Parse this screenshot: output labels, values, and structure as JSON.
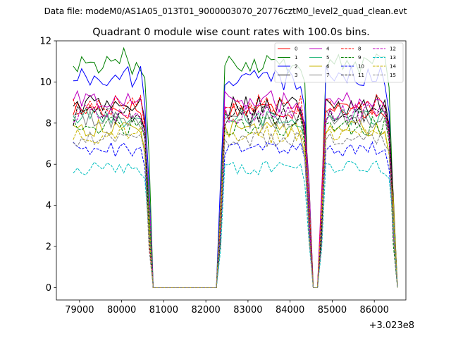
{
  "suptitle": "Data file: modeM0/AS1A05_013T01_9000003070_20776cztM0_level2_quad_clean.evt",
  "chart_data": {
    "type": "line",
    "title": "Quadrant 0 module wise count rates with 100.0s bins.",
    "xlabel": "",
    "ylabel": "",
    "x_offset_label": "+3.023e8",
    "xlim": [
      78450,
      86750
    ],
    "ylim": [
      -0.6,
      12
    ],
    "x_ticks": [
      79000,
      80000,
      81000,
      82000,
      83000,
      84000,
      85000,
      86000
    ],
    "x_tick_labels": [
      "79000",
      "80000",
      "81000",
      "82000",
      "83000",
      "84000",
      "85000",
      "86000"
    ],
    "y_ticks": [
      0,
      2,
      4,
      6,
      8,
      10,
      12
    ],
    "y_tick_labels": [
      "0",
      "2",
      "4",
      "6",
      "8",
      "10",
      "12"
    ],
    "legend_position": "top-right",
    "x_start": 78850,
    "x_step": 100,
    "segments": [
      {
        "start": 0,
        "end": 18
      },
      {
        "start": 35,
        "end": 56
      },
      {
        "start": 59,
        "end": 76
      }
    ],
    "series": [
      {
        "name": "0",
        "color": "#ff0000",
        "dash": "solid",
        "base": 8.5
      },
      {
        "name": "1",
        "color": "#008000",
        "dash": "solid",
        "base": 10.8
      },
      {
        "name": "2",
        "color": "#0000ff",
        "dash": "solid",
        "base": 10.0
      },
      {
        "name": "3",
        "color": "#000000",
        "dash": "solid",
        "base": 8.7
      },
      {
        "name": "4",
        "color": "#c000c0",
        "dash": "solid",
        "base": 8.9
      },
      {
        "name": "5",
        "color": "#2ab87e",
        "dash": "solid",
        "base": 8.1
      },
      {
        "name": "6",
        "color": "#c8b400",
        "dash": "solid",
        "base": 7.6
      },
      {
        "name": "7",
        "color": "#808080",
        "dash": "solid",
        "base": 8.0
      },
      {
        "name": "8",
        "color": "#ff0000",
        "dash": "dashed",
        "base": 8.7
      },
      {
        "name": "9",
        "color": "#008000",
        "dash": "dashed",
        "base": 7.7
      },
      {
        "name": "10",
        "color": "#0000ff",
        "dash": "dashed",
        "base": 6.6
      },
      {
        "name": "11",
        "color": "#000000",
        "dash": "dashed",
        "base": 8.2
      },
      {
        "name": "12",
        "color": "#c000c0",
        "dash": "dashed",
        "base": 8.3
      },
      {
        "name": "13",
        "color": "#00bfbf",
        "dash": "dashed",
        "base": 5.7
      },
      {
        "name": "14",
        "color": "#c8b400",
        "dash": "dashed",
        "base": 7.3
      },
      {
        "name": "15",
        "color": "#808080",
        "dash": "dashed",
        "base": 7.1
      }
    ]
  }
}
